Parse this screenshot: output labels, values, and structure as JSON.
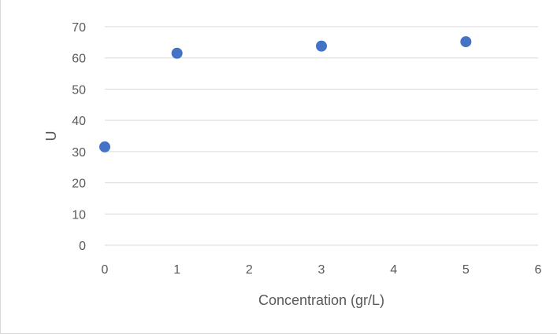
{
  "chart_data": {
    "type": "scatter",
    "title": "",
    "xlabel": "Concentration (gr/L)",
    "ylabel": "U",
    "xlim": [
      0,
      6
    ],
    "ylim": [
      0,
      70
    ],
    "x_ticks": [
      "0",
      "1",
      "2",
      "3",
      "4",
      "5",
      "6"
    ],
    "y_ticks": [
      "0",
      "10",
      "20",
      "30",
      "40",
      "50",
      "60",
      "70"
    ],
    "grid": "horizontal",
    "legend": "none",
    "marker_color": "#4472c4",
    "gridline_color": "#d9d9d9",
    "text_color": "#595959",
    "series": [
      {
        "x": [
          0,
          1,
          3,
          5
        ],
        "y": [
          31.5,
          61.5,
          63.8,
          65.2
        ]
      }
    ]
  }
}
